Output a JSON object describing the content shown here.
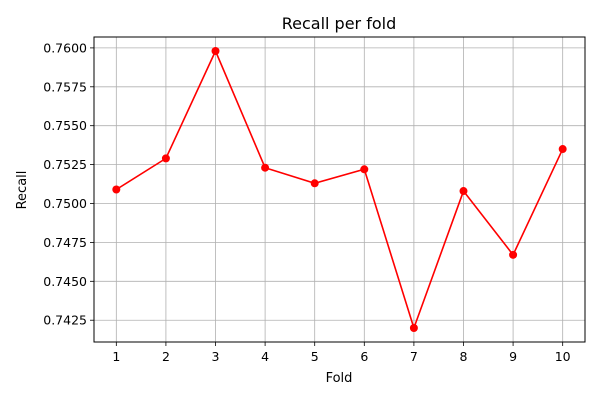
{
  "chart_data": {
    "type": "line",
    "title": "Recall per fold",
    "xlabel": "Fold",
    "ylabel": "Recall",
    "x": [
      1,
      2,
      3,
      4,
      5,
      6,
      7,
      8,
      9,
      10
    ],
    "x_ticks": [
      "1",
      "2",
      "3",
      "4",
      "5",
      "6",
      "7",
      "8",
      "9",
      "10"
    ],
    "y_ticks": [
      "0.7425",
      "0.7450",
      "0.7475",
      "0.7500",
      "0.7525",
      "0.7550",
      "0.7575",
      "0.7600"
    ],
    "xlim": [
      0.55,
      10.45
    ],
    "ylim": [
      0.7411,
      0.7607
    ],
    "grid": true,
    "legend": "none",
    "series": [
      {
        "color": "#ff0000",
        "marker": "circle",
        "values": [
          0.7509,
          0.7529,
          0.7598,
          0.7523,
          0.7513,
          0.7522,
          0.742,
          0.7508,
          0.7467,
          0.7535
        ]
      }
    ]
  }
}
